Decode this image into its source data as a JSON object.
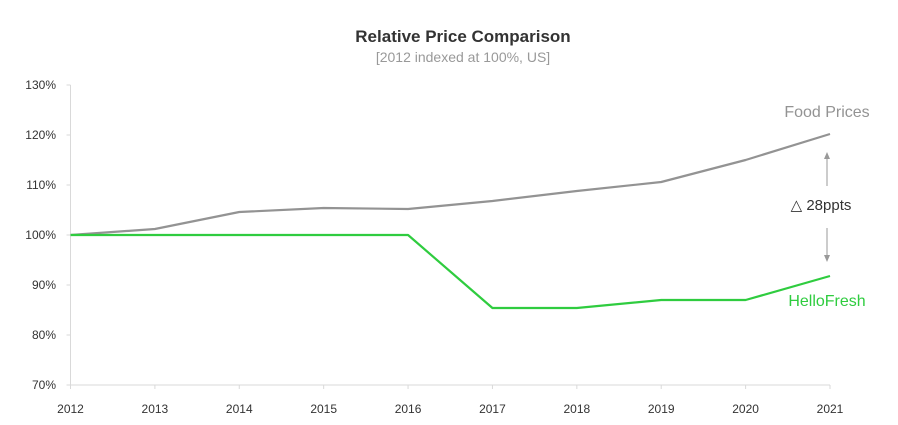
{
  "chart_data": {
    "type": "line",
    "title": "Relative Price Comparison",
    "subtitle": "[2012 indexed at 100%, US]",
    "xlabel": "",
    "ylabel": "",
    "x": [
      "2012",
      "2013",
      "2014",
      "2015",
      "2016",
      "2017",
      "2018",
      "2019",
      "2020",
      "2021"
    ],
    "ylim": [
      70,
      130
    ],
    "yticks": [
      70,
      80,
      90,
      100,
      110,
      120,
      130
    ],
    "ytick_labels": [
      "70%",
      "80%",
      "90%",
      "100%",
      "110%",
      "120%",
      "130%"
    ],
    "grid": false,
    "series": [
      {
        "name": "Food Prices",
        "color": "#939393",
        "values": [
          100,
          101.2,
          104.6,
          105.4,
          105.2,
          106.8,
          108.8,
          110.6,
          115.0,
          120.2
        ]
      },
      {
        "name": "HelloFresh",
        "color": "#2fcc3f",
        "values": [
          100,
          100,
          100,
          100,
          100,
          85.4,
          85.4,
          87.0,
          87.0,
          91.8
        ]
      }
    ],
    "annotation": {
      "text": "△ 28ppts",
      "color": "#333333"
    }
  }
}
